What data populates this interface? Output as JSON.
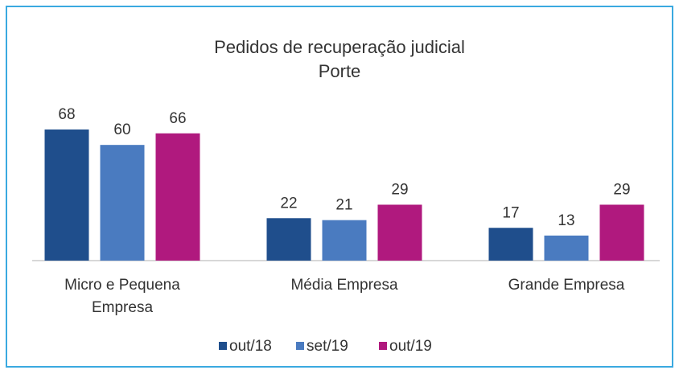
{
  "chart_data": {
    "type": "bar",
    "title": "Pedidos de recuperação judicial",
    "subtitle": "Porte",
    "categories": [
      "Micro e Pequena Empresa",
      "Média Empresa",
      "Grande Empresa"
    ],
    "series": [
      {
        "name": "out/18",
        "color": "#1f4e8c",
        "values": [
          68,
          22,
          17
        ]
      },
      {
        "name": "set/19",
        "color": "#4a7bc0",
        "values": [
          60,
          21,
          13
        ]
      },
      {
        "name": "out/19",
        "color": "#b0197e",
        "values": [
          66,
          29,
          29
        ]
      }
    ],
    "legend": "bottom"
  }
}
